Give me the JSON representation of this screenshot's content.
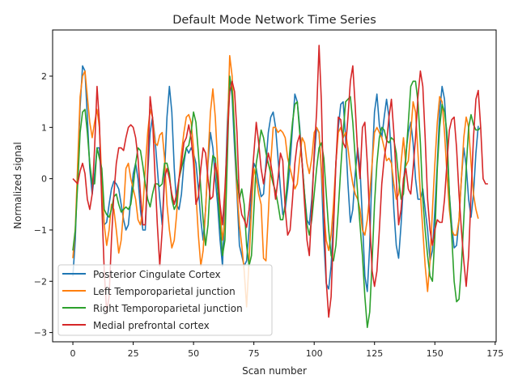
{
  "chart_data": {
    "type": "line",
    "title": "Default Mode Network Time Series",
    "xlabel": "Scan number",
    "ylabel": "Normalized signal",
    "xlim": [
      -8.4,
      175.4
    ],
    "ylim": [
      -3.18,
      2.9
    ],
    "xticks": [
      0,
      25,
      50,
      75,
      100,
      125,
      150,
      175
    ],
    "yticks": [
      -3,
      -2,
      -1,
      0,
      1,
      2
    ],
    "ytick_labels": [
      "−3",
      "−2",
      "−1",
      "0",
      "1",
      "2"
    ],
    "grid": false,
    "legend_position": "lower left",
    "series": [
      {
        "name": "Posterior Cingulate Cortex",
        "color": "#1f77b4",
        "values": [
          -1.9,
          -1.2,
          0.2,
          1.4,
          2.2,
          2.1,
          1.2,
          0.2,
          -0.3,
          0.1,
          0.6,
          0.6,
          -0.3,
          -0.9,
          -0.85,
          -0.5,
          -0.2,
          -0.05,
          -0.1,
          -0.2,
          -0.5,
          -0.8,
          -1.0,
          -0.9,
          -0.4,
          0.1,
          0.3,
          0.0,
          -0.6,
          -1.0,
          -1.0,
          0.1,
          0.9,
          1.2,
          0.8,
          0.2,
          -0.4,
          -0.9,
          0.1,
          1.2,
          1.8,
          1.3,
          0.2,
          -0.5,
          -0.6,
          -0.3,
          0.3,
          0.6,
          0.5,
          0.6,
          0.5,
          0.3,
          -0.2,
          -0.8,
          -1.2,
          -0.6,
          0.3,
          0.9,
          0.6,
          0.0,
          -0.5,
          -1.2,
          -1.7,
          -0.4,
          1.1,
          2.0,
          1.6,
          0.6,
          -0.3,
          -1.3,
          -1.5,
          -1.7,
          -1.6,
          -1.0,
          -0.3,
          0.3,
          0.2,
          -0.1,
          -0.35,
          -0.3,
          0.3,
          0.9,
          1.2,
          1.3,
          1.0,
          0.4,
          -0.2,
          -0.7,
          -0.6,
          -0.2,
          0.3,
          1.0,
          1.65,
          1.5,
          1.0,
          0.3,
          -0.3,
          -0.8,
          -0.9,
          -0.4,
          0.4,
          1.0,
          0.9,
          0.1,
          -1.2,
          -2.05,
          -2.15,
          -1.7,
          -0.8,
          0.3,
          1.0,
          1.45,
          1.5,
          0.8,
          -0.1,
          -0.85,
          -0.6,
          0.1,
          0.6,
          0.2,
          -0.8,
          -1.9,
          -2.2,
          -1.3,
          0.3,
          1.3,
          1.65,
          1.05,
          0.8,
          1.2,
          1.55,
          1.2,
          0.4,
          -0.6,
          -1.3,
          -1.55,
          -0.9,
          -0.1,
          0.5,
          0.9,
          1.1,
          0.7,
          0.0,
          -0.4,
          -0.4,
          -0.2,
          -0.6,
          -1.0,
          -1.6,
          -1.4,
          -0.6,
          0.3,
          1.3,
          1.8,
          1.55,
          0.7,
          -0.3,
          -0.9,
          -1.35,
          -1.3,
          -0.8,
          0.0,
          0.6,
          0.25,
          -0.4,
          -0.75,
          -0.3,
          0.5,
          1.03
        ]
      },
      {
        "name": "Left Temporoparietal junction",
        "color": "#ff7f0e",
        "values": [
          -1.55,
          -1.0,
          0.3,
          1.6,
          2.0,
          2.1,
          1.6,
          1.1,
          0.8,
          1.1,
          1.35,
          1.0,
          0.0,
          -0.9,
          -1.3,
          -1.0,
          -0.5,
          -0.6,
          -1.0,
          -1.45,
          -1.2,
          -0.6,
          0.2,
          0.3,
          0.0,
          -0.2,
          -0.4,
          -0.8,
          -0.9,
          -0.6,
          0.2,
          0.9,
          1.35,
          1.2,
          0.7,
          0.65,
          0.85,
          0.9,
          0.4,
          -0.5,
          -1.0,
          -1.35,
          -1.2,
          -0.7,
          0.0,
          0.5,
          0.9,
          1.2,
          1.25,
          1.1,
          0.6,
          -0.3,
          -1.1,
          -1.7,
          -1.4,
          -0.6,
          0.4,
          1.3,
          1.75,
          1.2,
          0.3,
          -0.6,
          -1.2,
          -0.8,
          0.8,
          2.4,
          2.0,
          0.9,
          -0.2,
          -0.9,
          -1.3,
          -1.8,
          -2.5,
          -1.6,
          -0.6,
          0.2,
          0.0,
          -0.3,
          -0.5,
          -1.55,
          -1.6,
          -0.7,
          0.3,
          1.0,
          1.0,
          0.9,
          0.95,
          0.9,
          0.8,
          0.4,
          0.2,
          0.0,
          -0.2,
          -0.1,
          0.4,
          0.8,
          0.7,
          0.3,
          0.1,
          0.4,
          0.9,
          1.0,
          0.9,
          0.2,
          -0.6,
          -1.2,
          -1.4,
          -1.1,
          -0.5,
          0.3,
          0.9,
          1.0,
          0.8,
          0.9,
          0.6,
          0.2,
          -0.1,
          -0.3,
          -0.4,
          -0.6,
          -1.0,
          -1.1,
          -0.8,
          -0.3,
          0.3,
          0.9,
          1.0,
          0.9,
          0.8,
          0.6,
          0.35,
          0.4,
          0.3,
          -0.1,
          -0.4,
          -0.3,
          0.3,
          0.8,
          0.25,
          0.35,
          0.9,
          1.5,
          1.3,
          0.5,
          -0.3,
          -1.0,
          -1.7,
          -2.2,
          -1.6,
          -0.6,
          0.3,
          1.1,
          1.6,
          1.5,
          0.9,
          0.1,
          -0.6,
          -1.0,
          -1.1,
          -1.1,
          -0.8,
          0.0,
          0.8,
          1.2,
          1.0,
          0.3,
          -0.3,
          -0.6,
          -0.78
        ]
      },
      {
        "name": "Right Temporoparietal junction",
        "color": "#2ca02c",
        "values": [
          -1.4,
          -1.0,
          -0.1,
          0.9,
          1.3,
          1.35,
          0.9,
          0.3,
          -0.1,
          -0.1,
          0.6,
          0.4,
          0.2,
          -0.6,
          -0.7,
          -0.75,
          -0.6,
          -0.35,
          -0.3,
          -0.5,
          -0.65,
          -0.6,
          -0.55,
          -0.6,
          -0.5,
          -0.15,
          0.3,
          0.6,
          0.55,
          0.25,
          -0.1,
          -0.4,
          -0.55,
          -0.3,
          -0.1,
          -0.1,
          -0.15,
          -0.1,
          0.3,
          0.3,
          0.1,
          -0.4,
          -0.6,
          -0.5,
          0.0,
          0.2,
          0.4,
          0.6,
          0.65,
          0.9,
          1.3,
          1.1,
          0.5,
          -0.2,
          -0.8,
          -1.3,
          -0.9,
          0.0,
          0.45,
          0.4,
          -0.2,
          -0.9,
          -1.5,
          -1.2,
          0.4,
          2.0,
          1.7,
          0.9,
          0.0,
          -0.4,
          -0.2,
          -0.5,
          -1.3,
          -1.7,
          -1.5,
          -0.6,
          0.3,
          0.6,
          0.95,
          0.8,
          0.5,
          0.3,
          0.1,
          -0.1,
          -0.25,
          -0.5,
          -0.8,
          -0.8,
          -0.5,
          0.0,
          0.6,
          1.1,
          1.45,
          1.5,
          0.9,
          0.3,
          -0.3,
          -0.9,
          -1.1,
          -0.8,
          -0.3,
          0.2,
          0.6,
          0.7,
          0.4,
          -0.3,
          -1.0,
          -1.5,
          -1.6,
          -1.3,
          -0.6,
          0.2,
          0.9,
          1.5,
          1.55,
          1.6,
          1.1,
          0.4,
          -0.3,
          -0.9,
          -1.5,
          -2.3,
          -2.9,
          -2.6,
          -1.6,
          -0.5,
          0.3,
          0.8,
          1.0,
          0.95,
          0.75,
          0.7,
          0.8,
          0.75,
          0.5,
          0.0,
          -0.4,
          -0.3,
          0.4,
          1.1,
          1.8,
          1.9,
          1.9,
          1.5,
          0.7,
          -0.4,
          -1.0,
          -1.5,
          -1.9,
          -2.0,
          -1.1,
          0.2,
          1.0,
          1.45,
          1.3,
          0.9,
          -0.3,
          -1.1,
          -2.0,
          -2.4,
          -2.35,
          -1.7,
          -0.8,
          0.2,
          1.0,
          1.25,
          1.05,
          0.95,
          0.95,
          1.0
        ]
      },
      {
        "name": "Medial prefrontal cortex",
        "color": "#d62728",
        "values": [
          0.0,
          -0.05,
          -0.1,
          0.15,
          0.3,
          0.1,
          -0.4,
          -0.6,
          -0.3,
          0.6,
          1.8,
          1.1,
          -0.5,
          -1.8,
          -2.6,
          -2.3,
          -1.2,
          -0.3,
          0.3,
          0.6,
          0.6,
          0.55,
          0.8,
          1.0,
          1.05,
          1.0,
          0.8,
          0.4,
          -0.3,
          -0.9,
          -0.9,
          0.2,
          1.6,
          1.2,
          0.1,
          -0.9,
          -1.7,
          -1.0,
          0.0,
          0.2,
          0.0,
          -0.3,
          -0.5,
          -0.3,
          0.0,
          0.3,
          0.7,
          0.8,
          1.05,
          0.8,
          0.3,
          -0.5,
          -0.35,
          0.2,
          0.6,
          0.5,
          0.0,
          -0.4,
          -0.35,
          0.3,
          0.05,
          -0.5,
          -0.9,
          -0.2,
          0.8,
          1.7,
          1.9,
          1.7,
          0.9,
          -0.4,
          -0.7,
          -0.8,
          -0.95,
          -0.6,
          -0.1,
          0.5,
          1.1,
          0.7,
          0.2,
          -0.1,
          0.2,
          0.5,
          0.3,
          0.0,
          -0.4,
          0.0,
          0.5,
          0.35,
          -0.6,
          -1.1,
          -1.0,
          -0.4,
          0.3,
          0.7,
          0.85,
          0.3,
          -0.5,
          -1.2,
          -1.5,
          -0.6,
          0.5,
          1.3,
          2.6,
          1.5,
          -0.5,
          -2.0,
          -2.7,
          -2.3,
          -1.0,
          0.3,
          1.2,
          1.15,
          0.7,
          0.6,
          1.2,
          1.9,
          2.2,
          1.4,
          0.5,
          0.0,
          1.0,
          1.1,
          0.3,
          -0.8,
          -1.8,
          -2.1,
          -1.8,
          -1.0,
          -0.1,
          0.4,
          0.7,
          1.2,
          1.55,
          0.9,
          0.0,
          -0.9,
          -0.6,
          0.0,
          0.2,
          -0.2,
          -0.3,
          0.2,
          0.8,
          1.6,
          2.1,
          1.8,
          0.8,
          -0.4,
          -1.0,
          -1.3,
          -1.0,
          -0.8,
          -0.85,
          -0.85,
          -0.4,
          0.3,
          0.95,
          1.15,
          1.2,
          0.6,
          -0.3,
          -1.0,
          -1.6,
          -2.1,
          -1.5,
          -0.3,
          0.8,
          1.55,
          1.72,
          1.0,
          0.0,
          -0.1,
          -0.1
        ]
      }
    ]
  }
}
